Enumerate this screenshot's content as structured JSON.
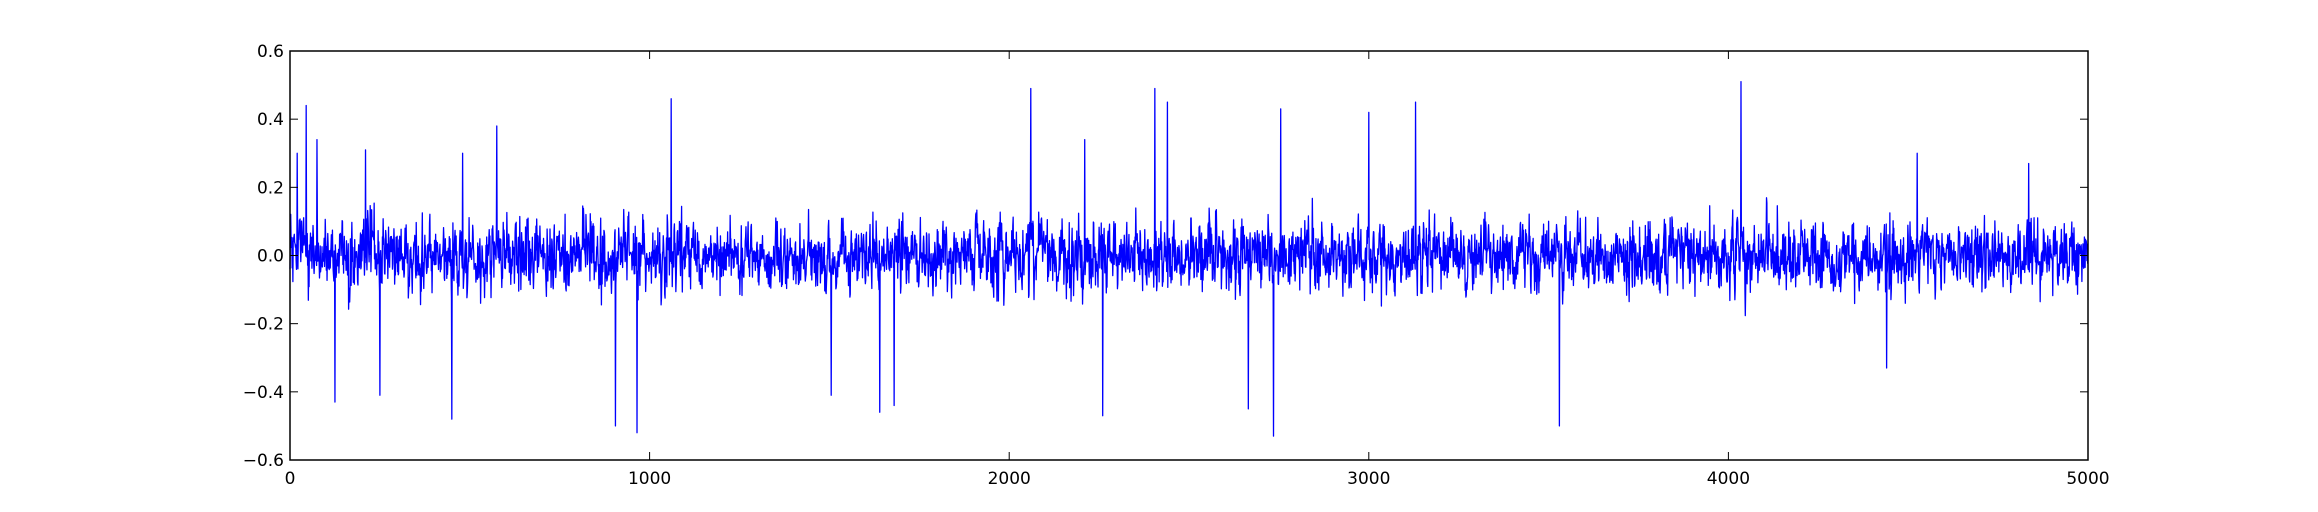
{
  "chart_data": {
    "type": "line",
    "title": "",
    "xlabel": "",
    "ylabel": "",
    "xlim": [
      0,
      5000
    ],
    "ylim": [
      -0.6,
      0.6
    ],
    "x_ticks": [
      0,
      1000,
      2000,
      3000,
      4000,
      5000
    ],
    "x_tick_labels": [
      "0",
      "1000",
      "2000",
      "3000",
      "4000",
      "5000"
    ],
    "y_ticks": [
      -0.6,
      -0.4,
      -0.2,
      0.0,
      0.2,
      0.4,
      0.6
    ],
    "y_tick_labels": [
      "−0.6",
      "−0.4",
      "−0.2",
      "0.0",
      "0.2",
      "0.4",
      "0.6"
    ],
    "grid": false,
    "legend": "none",
    "series": [
      {
        "color": "#0000ff",
        "x_start": 0,
        "x_step": 1,
        "count": 5000,
        "values_description": "noise-like signal around 0 with std ~0.1",
        "peaks": [
          {
            "x": 20,
            "y": 0.3
          },
          {
            "x": 45,
            "y": 0.44
          },
          {
            "x": 75,
            "y": 0.34
          },
          {
            "x": 125,
            "y": -0.43
          },
          {
            "x": 210,
            "y": 0.31
          },
          {
            "x": 250,
            "y": -0.41
          },
          {
            "x": 450,
            "y": -0.48
          },
          {
            "x": 480,
            "y": 0.3
          },
          {
            "x": 575,
            "y": 0.38
          },
          {
            "x": 905,
            "y": -0.5
          },
          {
            "x": 965,
            "y": -0.52
          },
          {
            "x": 1060,
            "y": 0.46
          },
          {
            "x": 1505,
            "y": -0.41
          },
          {
            "x": 1640,
            "y": -0.46
          },
          {
            "x": 1680,
            "y": -0.44
          },
          {
            "x": 2060,
            "y": 0.49
          },
          {
            "x": 2210,
            "y": 0.34
          },
          {
            "x": 2260,
            "y": -0.47
          },
          {
            "x": 2405,
            "y": 0.49
          },
          {
            "x": 2440,
            "y": 0.45
          },
          {
            "x": 2665,
            "y": -0.45
          },
          {
            "x": 2735,
            "y": -0.53
          },
          {
            "x": 2755,
            "y": 0.43
          },
          {
            "x": 3000,
            "y": 0.42
          },
          {
            "x": 3130,
            "y": 0.45
          },
          {
            "x": 3530,
            "y": -0.5
          },
          {
            "x": 4035,
            "y": 0.51
          },
          {
            "x": 4440,
            "y": -0.33
          },
          {
            "x": 4525,
            "y": 0.3
          },
          {
            "x": 4835,
            "y": 0.27
          }
        ]
      }
    ]
  }
}
